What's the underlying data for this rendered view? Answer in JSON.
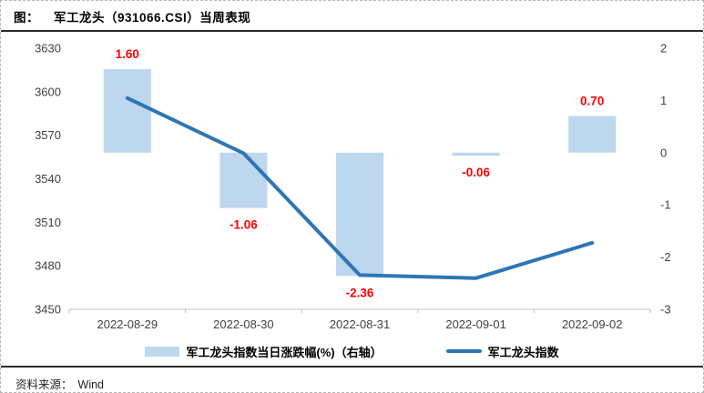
{
  "frame": {
    "title_prefix": "图：",
    "title": "军工龙头（931066.CSI）当周表现",
    "source_label": "资料来源：",
    "source_value": "Wind"
  },
  "chart_data": {
    "type": "bar+line combo",
    "categories": [
      "2022-08-29",
      "2022-08-30",
      "2022-08-31",
      "2022-09-01",
      "2022-09-02"
    ],
    "series": [
      {
        "name": "军工龙头指数当日涨跌幅(%)（右轴）",
        "type": "bar",
        "axis": "right",
        "values": [
          1.6,
          -1.06,
          -2.36,
          -0.06,
          0.7
        ],
        "labels": [
          "1.60",
          "-1.06",
          "-2.36",
          "-0.06",
          "0.70"
        ],
        "color": "#BDD7EE",
        "label_color": "#FF0000"
      },
      {
        "name": "军工龙头指数",
        "type": "line",
        "axis": "left",
        "values": [
          3595.6,
          3557.6,
          3473.6,
          3471.5,
          3495.8
        ],
        "color": "#2E75B6"
      }
    ],
    "left_axis": {
      "min": 3450,
      "max": 3630,
      "ticks": [
        3630,
        3600,
        3570,
        3540,
        3510,
        3480,
        3450
      ]
    },
    "right_axis": {
      "min": -3,
      "max": 2,
      "ticks": [
        2,
        1,
        0,
        -1,
        -2,
        -3
      ]
    },
    "grid": false,
    "legend_position": "bottom"
  }
}
